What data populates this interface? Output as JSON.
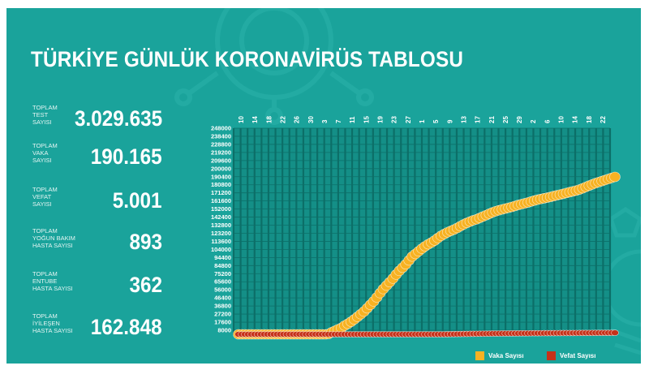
{
  "title": "TÜRKİYE GÜNLÜK KORONAVİRÜS TABLOSU",
  "stats": [
    {
      "label": "TOPLAM\nTEST\nSAYISI",
      "value": "3.029.635"
    },
    {
      "label": "TOPLAM\nVAKA\nSAYISI",
      "value": "190.165"
    },
    {
      "label": "TOPLAM\nVEFAT\nSAYISI",
      "value": "5.001"
    },
    {
      "label": "TOPLAM\nYOĞUN BAKIM\nHASTA SAYISI",
      "value": "893"
    },
    {
      "label": "TOPLAM\nENTUBE\nHASTA SAYISI",
      "value": "362"
    },
    {
      "label": "TOPLAM\nİYİLEŞEN\nHASTA SAYISI",
      "value": "162.848"
    }
  ],
  "colors": {
    "background": "#1aa39b",
    "grid": "#0c6f68",
    "vaka": "#f7b223",
    "vefat": "#c63119"
  },
  "chart_data": {
    "type": "line",
    "x_ticks": [
      "10",
      "14",
      "18",
      "22",
      "26",
      "30",
      "3",
      "7",
      "11",
      "15",
      "19",
      "23",
      "27",
      "1",
      "5",
      "9",
      "13",
      "17",
      "21",
      "25",
      "29",
      "2",
      "6",
      "10",
      "14",
      "18",
      "22"
    ],
    "y_ticks": [
      "248000",
      "238400",
      "228800",
      "219200",
      "209600",
      "200000",
      "190400",
      "180800",
      "171200",
      "161600",
      "152000",
      "142400",
      "132800",
      "123200",
      "113600",
      "104000",
      "94400",
      "84800",
      "75200",
      "65600",
      "56000",
      "46400",
      "36800",
      "27200",
      "17600",
      "8000"
    ],
    "ylim": [
      0,
      248000
    ],
    "grid": true,
    "legend_position": "bottom-right",
    "series": [
      {
        "name": "Vaka Sayısı",
        "color": "#f7b223",
        "values": [
          0,
          0,
          0,
          0,
          0,
          0,
          0,
          0,
          0,
          0,
          0,
          0,
          0,
          0,
          0,
          0,
          0,
          6,
          47,
          98,
          191,
          359,
          670,
          947,
          1236,
          1529,
          1872,
          2433,
          3629,
          5698,
          7402,
          9217,
          10827,
          13531,
          15679,
          18135,
          20921,
          23934,
          27069,
          30217,
          34109,
          38226,
          42282,
          47029,
          52167,
          56956,
          61049,
          65111,
          69392,
          74193,
          78546,
          82329,
          86306,
          90980,
          95591,
          98674,
          101790,
          104912,
          107773,
          110130,
          112261,
          114653,
          117589,
          120204,
          122392,
          124375,
          126045,
          127659,
          129491,
          131744,
          133721,
          135569,
          137115,
          138657,
          139771,
          141475,
          143114,
          144749,
          146457,
          148067,
          149435,
          150593,
          151615,
          152587,
          153548,
          154500,
          155686,
          156827,
          157814,
          158762,
          159797,
          160979,
          162120,
          163103,
          163942,
          164769,
          165555,
          166422,
          167410,
          168340,
          169218,
          170132,
          171121,
          172114,
          173036,
          174023,
          175218,
          176677,
          178239,
          179831,
          181298,
          182727,
          184031,
          185245,
          186493,
          187685,
          189022,
          190165
        ]
      },
      {
        "name": "Vefat Sayısı",
        "color": "#c63119",
        "values": [
          0,
          0,
          0,
          0,
          0,
          0,
          0,
          0,
          0,
          0,
          0,
          0,
          0,
          0,
          0,
          0,
          0,
          0,
          1,
          1,
          2,
          3,
          4,
          9,
          21,
          30,
          37,
          44,
          59,
          75,
          92,
          108,
          131,
          168,
          214,
          277,
          356,
          425,
          501,
          574,
          649,
          725,
          812,
          908,
          1006,
          1101,
          1198,
          1296,
          1403,
          1518,
          1643,
          1769,
          1890,
          2017,
          2140,
          2259,
          2376,
          2491,
          2600,
          2706,
          2805,
          2900,
          2992,
          3081,
          3174,
          3258,
          3336,
          3397,
          3461,
          3520,
          3584,
          3641,
          3689,
          3739,
          3786,
          3841,
          3894,
          3952,
          4007,
          4055,
          4096,
          4140,
          4171,
          4199,
          4222,
          4249,
          4276,
          4308,
          4340,
          4369,
          4397,
          4431,
          4461,
          4489,
          4515,
          4540,
          4563,
          4585,
          4609,
          4630,
          4648,
          4669,
          4692,
          4711,
          4729,
          4746,
          4778,
          4807,
          4825,
          4842,
          4861,
          4882,
          4905,
          4927,
          4950,
          4974,
          4986,
          5001
        ]
      }
    ]
  }
}
